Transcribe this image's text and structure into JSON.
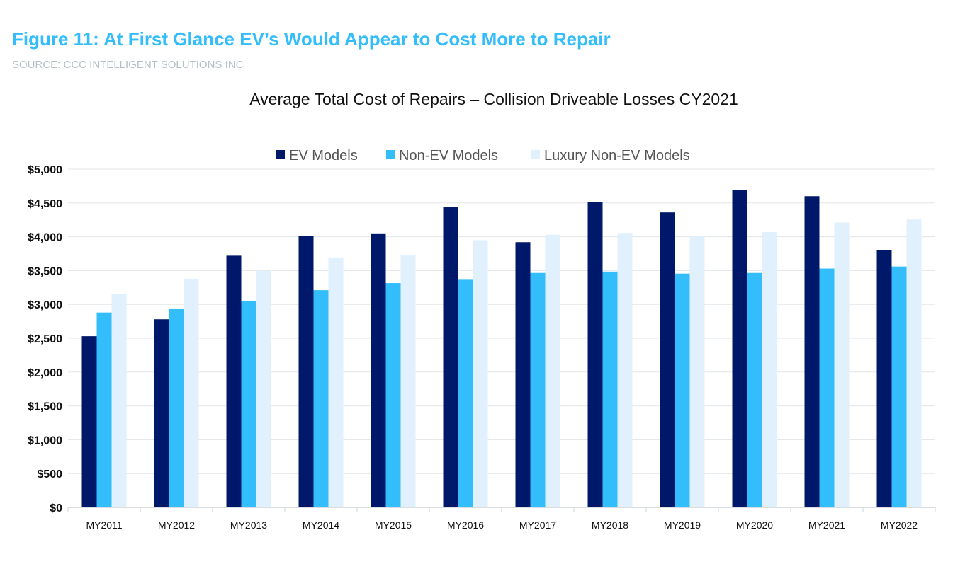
{
  "figure": {
    "title": "Figure 11: At First Glance EV’s Would Appear to Cost More to Repair",
    "source": "SOURCE: CCC INTELLIGENT SOLUTIONS INC"
  },
  "chart_data": {
    "type": "bar",
    "title": "Average Total Cost of Repairs – Collision Driveable Losses CY2021",
    "xlabel": "",
    "ylabel": "",
    "ylim": [
      0,
      5000
    ],
    "yticks": [
      0,
      500,
      1000,
      1500,
      2000,
      2500,
      3000,
      3500,
      4000,
      4500,
      5000
    ],
    "ytick_labels": [
      "$0",
      "$500",
      "$1,000",
      "$1,500",
      "$2,000",
      "$2,500",
      "$3,000",
      "$3,500",
      "$4,000",
      "$4,500",
      "$5,000"
    ],
    "grid": true,
    "legend_position": "top",
    "categories": [
      "MY2011",
      "MY2012",
      "MY2013",
      "MY2014",
      "MY2015",
      "MY2016",
      "MY2017",
      "MY2018",
      "MY2019",
      "MY2020",
      "MY2021",
      "MY2022"
    ],
    "series": [
      {
        "name": "EV Models",
        "color": "#001869",
        "values": [
          2530,
          2780,
          3720,
          4010,
          4050,
          4435,
          3920,
          4510,
          4360,
          4690,
          4600,
          3800
        ]
      },
      {
        "name": "Non-EV Models",
        "color": "#33bdfb",
        "values": [
          2880,
          2940,
          3055,
          3210,
          3315,
          3375,
          3465,
          3485,
          3455,
          3465,
          3530,
          3560
        ]
      },
      {
        "name": "Luxury Non-EV Models",
        "color": "#e0f1fd",
        "values": [
          3160,
          3380,
          3495,
          3695,
          3725,
          3950,
          4030,
          4055,
          4010,
          4070,
          4210,
          4255
        ]
      }
    ]
  }
}
